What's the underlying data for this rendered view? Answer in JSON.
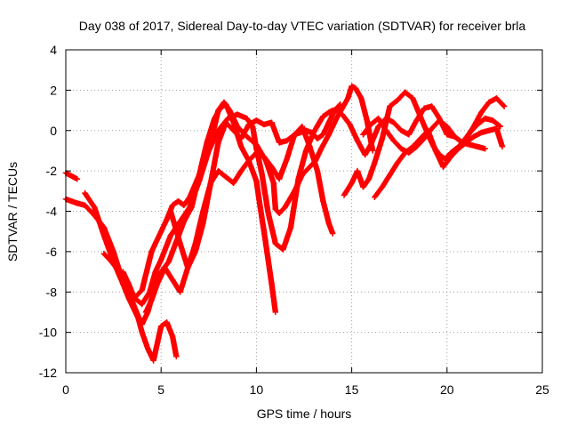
{
  "chart_data": {
    "type": "scatter",
    "title": "Day 038 of 2017, Sidereal Day-to-day VTEC variation (SDTVAR) for receiver brla",
    "xlabel": "GPS time / hours",
    "ylabel": "SDTVAR / TECUs",
    "xlim": [
      0,
      25
    ],
    "ylim": [
      -12,
      4
    ],
    "xticks": [
      0,
      5,
      10,
      15,
      20,
      25
    ],
    "yticks": [
      -12,
      -10,
      -8,
      -6,
      -4,
      -2,
      0,
      2,
      4
    ],
    "grid": true,
    "marker": "plus",
    "color": "#ff0000",
    "series": [
      {
        "name": "",
        "x": [
          0.0,
          0.2,
          0.4,
          0.6
        ],
        "y": [
          -2.1,
          -2.2,
          -2.3,
          -2.4
        ]
      },
      {
        "name": "",
        "x": [
          0.0,
          0.3,
          0.6,
          1.0,
          1.5,
          2.0,
          2.5,
          3.0,
          3.5,
          4.0,
          4.5,
          5.0,
          5.3,
          5.6,
          5.9,
          6.2,
          6.5,
          7.0,
          7.5,
          7.8,
          8.0,
          8.3,
          8.6,
          9.0,
          9.5,
          10.0,
          10.5,
          10.9,
          11.0,
          11.2,
          11.5,
          12.0,
          12.4,
          12.8,
          13.1,
          13.4,
          13.8,
          14.2,
          14.5,
          14.8,
          15.0,
          15.2,
          15.5,
          15.8,
          16.1
        ],
        "y": [
          -3.4,
          -3.5,
          -3.6,
          -3.7,
          -4.2,
          -4.8,
          -6.0,
          -7.5,
          -8.4,
          -7.9,
          -6.0,
          -5.0,
          -4.4,
          -3.7,
          -3.5,
          -3.7,
          -3.3,
          -2.2,
          -0.8,
          0.2,
          1.0,
          1.4,
          1.0,
          0.2,
          -0.3,
          -0.7,
          -1.5,
          -2.6,
          -3.9,
          -4.1,
          -3.8,
          -3.0,
          -2.2,
          -1.8,
          -1.5,
          -0.9,
          -0.2,
          0.6,
          1.1,
          1.6,
          2.2,
          2.1,
          1.6,
          0.5,
          -1.0
        ]
      },
      {
        "name": "",
        "x": [
          1.0,
          1.5,
          2.0,
          2.5,
          3.0,
          3.3,
          3.6,
          3.8,
          4.0,
          4.3,
          4.6,
          5.0,
          5.3,
          5.6,
          5.8
        ],
        "y": [
          -3.1,
          -3.8,
          -5.2,
          -6.5,
          -7.6,
          -8.3,
          -8.9,
          -9.3,
          -10.0,
          -10.8,
          -11.4,
          -9.7,
          -9.5,
          -10.2,
          -11.2
        ]
      },
      {
        "name": "",
        "x": [
          2.0,
          2.4,
          2.8,
          3.2,
          3.5,
          3.8,
          4.0,
          4.3,
          4.6,
          5.0,
          5.4,
          5.8,
          6.2,
          6.6,
          7.0,
          7.4,
          7.8,
          8.1,
          8.4,
          8.8,
          9.2,
          9.6,
          10.0,
          10.2,
          10.4,
          10.6,
          10.8,
          11.0
        ],
        "y": [
          -6.1,
          -6.5,
          -7.0,
          -7.8,
          -8.5,
          -9.2,
          -9.6,
          -9.0,
          -8.0,
          -7.0,
          -6.5,
          -5.5,
          -4.5,
          -3.8,
          -2.2,
          -0.6,
          0.6,
          1.1,
          1.3,
          0.4,
          -0.8,
          -1.5,
          -2.5,
          -3.8,
          -5.0,
          -6.3,
          -7.6,
          -9.0
        ]
      },
      {
        "name": "",
        "x": [
          3.0,
          3.3,
          3.6,
          4.0,
          4.4,
          4.7,
          5.0,
          5.5,
          6.0,
          6.5,
          7.0,
          7.5,
          8.0,
          8.5,
          9.0,
          9.5,
          9.8,
          10.0,
          10.3,
          10.6,
          11.0,
          11.4,
          11.8,
          12.2,
          12.6,
          13.0,
          13.3,
          13.5,
          13.8,
          14.0,
          14.2,
          14.5,
          14.9,
          15.3,
          15.7,
          16.0,
          16.4,
          16.8,
          17.2,
          17.6,
          18.0,
          18.4,
          18.8,
          19.2,
          19.6,
          20.0,
          20.4,
          20.8,
          21.2,
          21.6,
          22.0,
          22.4,
          22.8
        ],
        "y": [
          -7.0,
          -7.6,
          -8.3,
          -8.6,
          -8.0,
          -7.0,
          -6.4,
          -5.2,
          -4.5,
          -3.8,
          -2.5,
          -1.0,
          0.0,
          0.6,
          0.8,
          0.6,
          0.2,
          -0.9,
          -2.2,
          -4.0,
          -5.6,
          -5.9,
          -4.8,
          -2.4,
          -1.0,
          -0.1,
          0.4,
          0.7,
          0.9,
          1.0,
          1.0,
          0.8,
          0.3,
          -0.5,
          -1.2,
          -0.7,
          0.2,
          0.6,
          0.4,
          0.0,
          -0.2,
          0.5,
          1.1,
          1.2,
          0.6,
          -0.2,
          -0.3,
          -0.6,
          -0.1,
          0.3,
          0.6,
          0.5,
          0.2
        ]
      },
      {
        "name": "",
        "x": [
          4.2,
          4.5,
          4.8,
          5.2,
          5.6,
          6.0,
          6.4,
          6.8,
          7.2,
          7.6,
          8.0,
          8.4,
          8.8,
          9.2,
          9.6,
          10.0,
          10.4,
          10.8,
          11.2,
          11.6,
          12.0,
          12.4,
          12.8,
          13.2,
          13.5,
          13.8,
          14.0
        ],
        "y": [
          -9.0,
          -8.4,
          -7.6,
          -6.8,
          -7.4,
          -8.0,
          -6.8,
          -5.6,
          -4.0,
          -2.6,
          -2.0,
          -2.3,
          -2.6,
          -2.0,
          -1.5,
          -1.1,
          -1.3,
          -1.8,
          -2.4,
          -1.4,
          -0.2,
          0.2,
          -0.8,
          -2.0,
          -3.5,
          -4.6,
          -5.1
        ]
      },
      {
        "name": "",
        "x": [
          5.5,
          6.0,
          6.4,
          6.8,
          7.2,
          7.6,
          8.0,
          8.4,
          8.8,
          9.2,
          9.6,
          10.0,
          10.4,
          10.8,
          11.2,
          11.6,
          12.0,
          12.3,
          12.6,
          12.9,
          13.2,
          13.5,
          13.8,
          14.1,
          14.4
        ],
        "y": [
          -4.0,
          -5.6,
          -6.8,
          -6.0,
          -4.6,
          -2.6,
          -0.6,
          0.4,
          0.0,
          -0.4,
          0.3,
          0.5,
          0.3,
          0.4,
          -0.6,
          -0.5,
          -0.2,
          -0.1,
          0.0,
          -0.1,
          -0.4,
          -0.2,
          0.4,
          1.0,
          1.3
        ]
      },
      {
        "name": "",
        "x": [
          14.6,
          15.0,
          15.3,
          15.6,
          15.9,
          16.2,
          16.6,
          17.0,
          17.4,
          17.8,
          18.2,
          18.6,
          19.0,
          19.3,
          19.6,
          19.9,
          20.2,
          20.6,
          21.0,
          21.4,
          21.8,
          22.2,
          22.6,
          23.0
        ],
        "y": [
          -3.2,
          -2.6,
          -2.0,
          -2.8,
          -2.4,
          -1.6,
          -0.4,
          1.2,
          1.5,
          1.9,
          1.6,
          0.7,
          -0.2,
          -0.8,
          -1.2,
          -1.4,
          -1.1,
          -0.8,
          -0.4,
          0.2,
          0.9,
          1.4,
          1.6,
          1.2
        ]
      },
      {
        "name": "",
        "x": [
          16.2,
          16.6,
          17.0,
          17.4,
          17.8,
          18.2,
          18.6,
          19.0,
          19.4,
          19.8,
          20.2,
          20.6,
          21.0,
          21.4,
          21.8,
          22.2,
          22.6,
          22.9
        ],
        "y": [
          -3.3,
          -2.8,
          -2.2,
          -1.6,
          -1.1,
          -0.8,
          -0.4,
          0.0,
          -1.0,
          -1.8,
          -1.3,
          -0.9,
          -0.6,
          -0.3,
          -0.1,
          0.0,
          0.1,
          -0.8
        ]
      },
      {
        "name": "",
        "x": [
          15.6,
          16.0,
          16.4,
          16.8,
          17.2,
          17.6,
          18.0,
          18.4,
          18.8,
          19.2,
          19.6,
          20.0,
          20.4,
          20.8,
          21.2,
          21.6,
          22.0
        ],
        "y": [
          -0.2,
          0.3,
          0.6,
          0.0,
          -0.5,
          -0.9,
          -1.1,
          -0.8,
          -0.4,
          0.1,
          0.5,
          0.2,
          -0.3,
          -0.6,
          -0.7,
          -0.8,
          -0.9
        ]
      }
    ]
  }
}
